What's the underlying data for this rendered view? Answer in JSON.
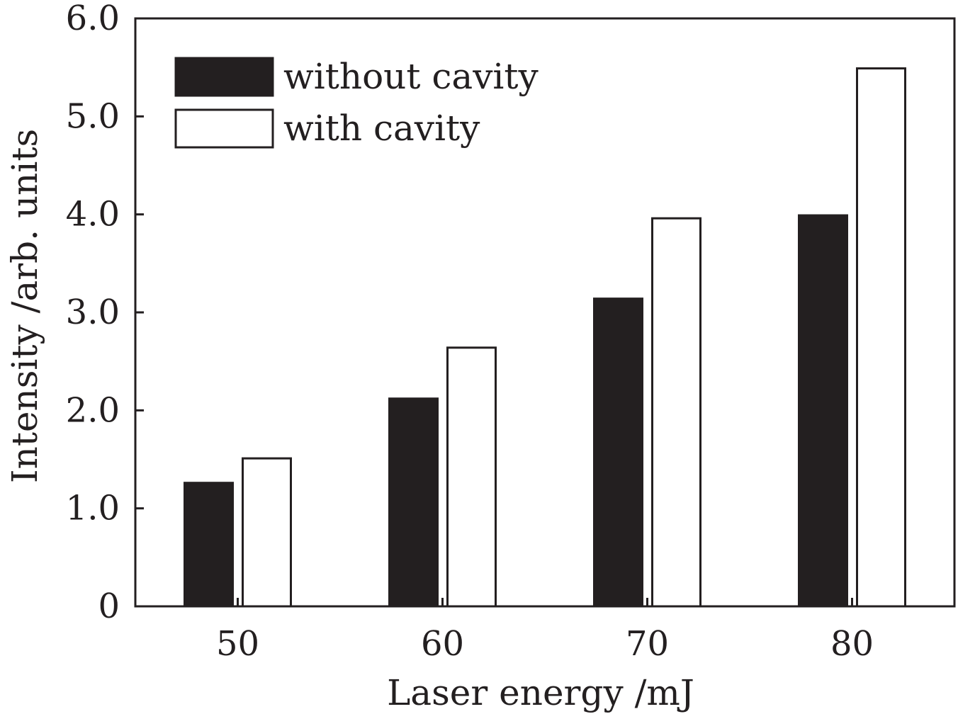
{
  "chart_data": {
    "type": "bar",
    "categories": [
      "50",
      "60",
      "70",
      "80"
    ],
    "series": [
      {
        "name": "without cavity",
        "values": [
          1.26,
          2.12,
          3.14,
          3.99
        ],
        "color": "#231f20",
        "fill": "solid"
      },
      {
        "name": "with cavity",
        "values": [
          1.51,
          2.64,
          3.96,
          5.49
        ],
        "color": "#ffffff",
        "fill": "outline"
      }
    ],
    "xlabel": "Laser energy /mJ",
    "ylabel": "Intensity /arb. units",
    "ylim": [
      0,
      6.0
    ],
    "yticks": [
      0,
      1.0,
      2.0,
      3.0,
      4.0,
      5.0,
      6.0
    ],
    "ytick_labels": [
      "0",
      "1.0",
      "2.0",
      "3.0",
      "4.0",
      "5.0",
      "6.0"
    ],
    "grid": false,
    "legend_position": "top-left"
  }
}
